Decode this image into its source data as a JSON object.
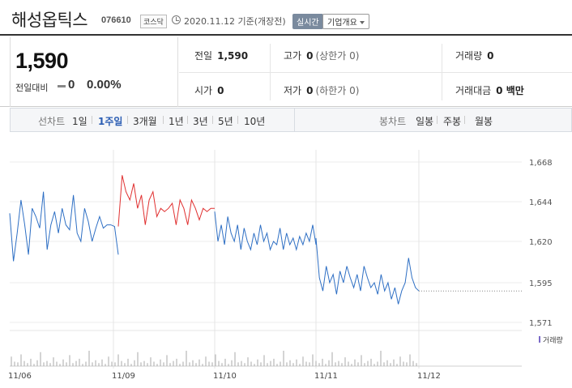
{
  "header": {
    "stock_name": "해성옵틱스",
    "code": "076610",
    "market": "코스닥",
    "date_text": "2020.11.12 기준(개장전)",
    "realtime_label": "실시간",
    "company_label": "기업개요"
  },
  "quote": {
    "price": "1,590",
    "prev_label": "전일대비",
    "change": "0",
    "change_pct": "0.00%"
  },
  "stats": {
    "prev_close_label": "전일",
    "prev_close": "1,590",
    "high_label": "고가",
    "high": "0",
    "high_limit": "(상한가 0)",
    "volume_label": "거래량",
    "volume": "0",
    "open_label": "시가",
    "open": "0",
    "low_label": "저가",
    "low": "0",
    "low_limit": "(하한가 0)",
    "amount_label": "거래대금",
    "amount": "0 백만"
  },
  "tabs": {
    "line_label": "선차트",
    "line_periods": [
      "1일",
      "1주일",
      "3개월",
      "1년",
      "3년",
      "5년",
      "10년"
    ],
    "active_line": "1주일",
    "candle_label": "봉차트",
    "candle_periods": [
      "일봉",
      "주봉",
      "월봉"
    ]
  },
  "colors": {
    "up": "#e03030",
    "normal": "#2e6fc4",
    "volume": "#aaaaaa",
    "volume_legend": "#7a6ac8"
  },
  "chart_data": {
    "type": "line",
    "y_ticks": [
      "1,668",
      "1,644",
      "1,620",
      "1,595",
      "1,571"
    ],
    "ylim": [
      1571,
      1668
    ],
    "x_ticks": [
      "11/06",
      "11/09",
      "11/10",
      "11/11",
      "11/12"
    ],
    "volume_label": "거래량",
    "reference_value": 1590,
    "series": [
      {
        "values": [
          1637,
          1608,
          1625,
          1645,
          1630,
          1612,
          1640,
          1635,
          1628,
          1650,
          1615,
          1630,
          1638,
          1625,
          1640,
          1630,
          1627,
          1648,
          1625,
          1620,
          1640,
          1632,
          1620,
          1628,
          1635,
          1628,
          1630,
          1630,
          1629,
          1612
        ]
      },
      {
        "values": [
          1629,
          1660,
          1650,
          1645,
          1655,
          1640,
          1648,
          1630,
          1645,
          1650,
          1635,
          1640,
          1638,
          1640,
          1643,
          1630,
          1645,
          1640,
          1630,
          1645,
          1640,
          1633,
          1640,
          1638,
          1640,
          1640
        ]
      },
      {
        "values": [
          1638,
          1620,
          1630,
          1618,
          1635,
          1625,
          1620,
          1630,
          1615,
          1628,
          1620,
          1615,
          1625,
          1618,
          1630,
          1620,
          1625,
          1615,
          1620,
          1618,
          1628,
          1615,
          1625,
          1618,
          1622,
          1615,
          1623,
          1618,
          1625,
          1620,
          1630,
          1618
        ]
      },
      {
        "values": [
          1622,
          1598,
          1590,
          1605,
          1595,
          1600,
          1588,
          1602,
          1595,
          1605,
          1598,
          1592,
          1600,
          1590,
          1605,
          1598,
          1592,
          1595,
          1588,
          1600,
          1590,
          1595,
          1585,
          1592,
          1582,
          1590,
          1595,
          1610,
          1598,
          1592,
          1590
        ]
      }
    ]
  }
}
